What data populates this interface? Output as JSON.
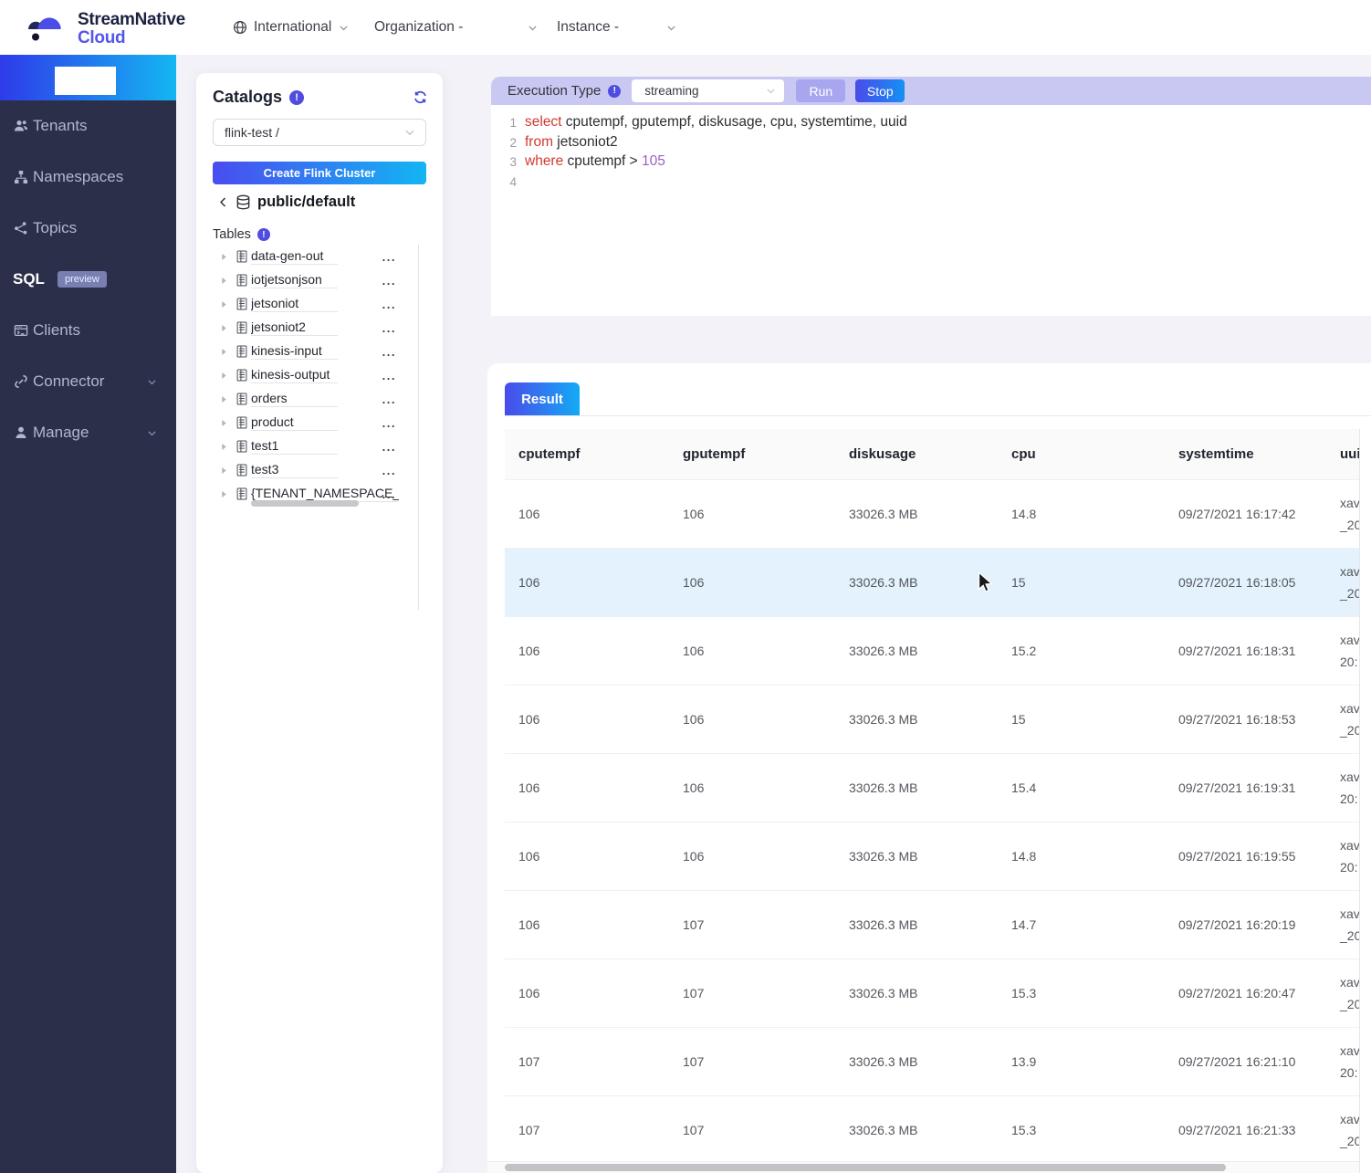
{
  "header": {
    "brand": {
      "line1": "StreamNative",
      "line2": "Cloud"
    },
    "region_label": "International",
    "organization_label": "Organization -",
    "instance_label": "Instance -"
  },
  "sidebar": {
    "items": [
      {
        "label": "Tenants",
        "icon": "tenants",
        "active": false,
        "badge": null,
        "expandable": false
      },
      {
        "label": "Namespaces",
        "icon": "namespaces",
        "active": false,
        "badge": null,
        "expandable": false
      },
      {
        "label": "Topics",
        "icon": "topics",
        "active": false,
        "badge": null,
        "expandable": false
      },
      {
        "label": "SQL",
        "icon": null,
        "active": true,
        "badge": "preview",
        "expandable": false
      },
      {
        "label": "Clients",
        "icon": "clients",
        "active": false,
        "badge": null,
        "expandable": false
      },
      {
        "label": "Connector",
        "icon": "connector",
        "active": false,
        "badge": null,
        "expandable": true
      },
      {
        "label": "Manage",
        "icon": "manage",
        "active": false,
        "badge": null,
        "expandable": true
      }
    ]
  },
  "catalogs": {
    "title": "Catalogs",
    "select_value": "flink-test /",
    "create_button_label": "Create Flink Cluster",
    "breadcrumb": "public/default",
    "tables_label": "Tables",
    "tables": [
      "data-gen-out",
      "iotjetsonjson",
      "jetsoniot",
      "jetsoniot2",
      "kinesis-input",
      "kinesis-output",
      "orders",
      "product",
      "test1",
      "test3",
      "{TENANT_NAMESPACE_T"
    ]
  },
  "editor": {
    "execution_type_label": "Execution Type",
    "execution_type_value": "streaming",
    "run_label": "Run",
    "stop_label": "Stop",
    "lines": [
      {
        "num": "1",
        "tokens": [
          {
            "t": "kw",
            "v": "select"
          },
          {
            "t": "pl",
            "v": " cputempf, gputempf, diskusage, cpu, systemtime, uuid"
          }
        ]
      },
      {
        "num": "2",
        "tokens": [
          {
            "t": "kw",
            "v": "from"
          },
          {
            "t": "pl",
            "v": " jetsoniot2"
          }
        ]
      },
      {
        "num": "3",
        "tokens": [
          {
            "t": "kw",
            "v": "where"
          },
          {
            "t": "pl",
            "v": " cputempf > "
          },
          {
            "t": "num",
            "v": "105"
          }
        ]
      },
      {
        "num": "4",
        "tokens": []
      }
    ]
  },
  "result": {
    "tab_label": "Result",
    "columns": [
      "cputempf",
      "gputempf",
      "diskusage",
      "cpu",
      "systemtime",
      "uuid"
    ],
    "highlighted_row_index": 1,
    "rows": [
      [
        "106",
        "106",
        "33026.3 MB",
        "14.8",
        "09/27/2021 16:17:42",
        "xav\n_20"
      ],
      [
        "106",
        "106",
        "33026.3 MB",
        "15",
        "09/27/2021 16:18:05",
        "xav\n_20"
      ],
      [
        "106",
        "106",
        "33026.3 MB",
        "15.2",
        "09/27/2021 16:18:31",
        "xav\n20:"
      ],
      [
        "106",
        "106",
        "33026.3 MB",
        "15",
        "09/27/2021 16:18:53",
        "xav\n_20"
      ],
      [
        "106",
        "106",
        "33026.3 MB",
        "15.4",
        "09/27/2021 16:19:31",
        "xav\n20:"
      ],
      [
        "106",
        "106",
        "33026.3 MB",
        "14.8",
        "09/27/2021 16:19:55",
        "xav\n20:"
      ],
      [
        "106",
        "107",
        "33026.3 MB",
        "14.7",
        "09/27/2021 16:20:19",
        "xav\n_20"
      ],
      [
        "106",
        "107",
        "33026.3 MB",
        "15.3",
        "09/27/2021 16:20:47",
        "xav\n_20"
      ],
      [
        "107",
        "107",
        "33026.3 MB",
        "13.9",
        "09/27/2021 16:21:10",
        "xav\n20:"
      ],
      [
        "107",
        "107",
        "33026.3 MB",
        "15.3",
        "09/27/2021 16:21:33",
        "xav\n_20"
      ]
    ]
  },
  "colors": {
    "accent_gradient_start": "#4a4bea",
    "accent_gradient_end": "#14aaf5",
    "sidebar_background": "#2b2f4a",
    "sidebar_banner_gradient_start": "#2e3bea",
    "sidebar_banner_gradient_end": "#14b6f2",
    "execution_bar_background": "#c9c8f3",
    "highlighted_row": "#e3f2fc",
    "sql_keyword": "#cf3b30",
    "sql_number": "#9d5fc6",
    "info_icon": "#4f4ce0",
    "run_button_disabled": "#a7a6ef",
    "brand_navy": "#1c2142",
    "brand_violet": "#5356e9"
  }
}
